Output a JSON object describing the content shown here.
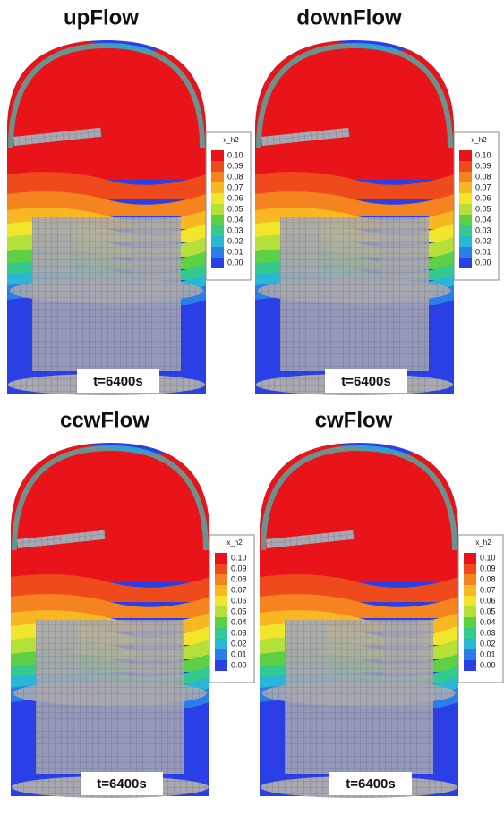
{
  "panels": [
    {
      "title": "upFlow",
      "legend_title": "x_h2",
      "legend_labels": [
        "0.10",
        "0.09",
        "0.08",
        "0.07",
        "0.06",
        "0.05",
        "0.04",
        "0.03",
        "0.02",
        "0.01",
        "0.00"
      ],
      "time_label": "t=6400s"
    },
    {
      "title": "downFlow",
      "legend_title": "x_h2",
      "legend_labels": [
        "0.10",
        "0.09",
        "0.08",
        "0.07",
        "0.06",
        "0.05",
        "0.04",
        "0.03",
        "0.02",
        "0.01",
        "0.00"
      ],
      "time_label": "t=6400s"
    },
    {
      "title": "ccwFlow",
      "legend_title": "x_h2",
      "legend_labels": [
        "0.10",
        "0.09",
        "0.08",
        "0.07",
        "0.06",
        "0.05",
        "0.04",
        "0.03",
        "0.02",
        "0.01",
        "0.00"
      ],
      "time_label": "t=6400s"
    },
    {
      "title": "cwFlow",
      "legend_title": "x_h2",
      "legend_labels": [
        "0.10",
        "0.09",
        "0.08",
        "0.07",
        "0.06",
        "0.05",
        "0.04",
        "0.03",
        "0.02",
        "0.01",
        "0.00"
      ],
      "time_label": "t=6400s"
    }
  ]
}
